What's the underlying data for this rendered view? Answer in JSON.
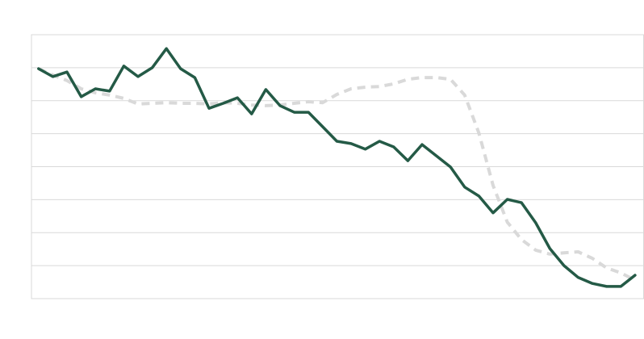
{
  "chart_data": {
    "type": "line",
    "x": [
      0,
      1,
      2,
      3,
      4,
      5,
      6,
      7,
      8,
      9,
      10,
      11,
      12,
      13,
      14,
      15,
      16,
      17,
      18,
      19,
      20,
      21,
      22,
      23,
      24,
      25,
      26,
      27,
      28,
      29,
      30,
      31,
      32,
      33,
      34,
      35,
      36,
      37,
      38,
      39,
      40,
      41,
      42
    ],
    "xlim": [
      -0.5,
      42.6
    ],
    "ylim": [
      0,
      8
    ],
    "yticks": [
      0,
      1,
      2,
      3,
      4,
      5,
      6,
      7,
      8
    ],
    "grid": true,
    "series": [
      {
        "color": "#d9d9d9",
        "dashed": true,
        "values": [
          6.97,
          6.78,
          6.61,
          6.36,
          6.24,
          6.17,
          6.07,
          5.9,
          5.92,
          5.94,
          5.92,
          5.92,
          5.9,
          5.94,
          5.92,
          5.87,
          5.85,
          5.87,
          5.92,
          5.97,
          5.94,
          6.19,
          6.36,
          6.41,
          6.43,
          6.51,
          6.65,
          6.7,
          6.7,
          6.65,
          6.17,
          5.02,
          3.43,
          2.32,
          1.79,
          1.47,
          1.35,
          1.39,
          1.42,
          1.22,
          0.93,
          0.78,
          0.56
        ]
      },
      {
        "color": "#245a46",
        "dashed": false,
        "values": [
          6.97,
          6.73,
          6.87,
          6.12,
          6.36,
          6.29,
          7.05,
          6.73,
          7.0,
          7.58,
          6.97,
          6.7,
          5.77,
          5.92,
          6.09,
          5.6,
          6.34,
          5.85,
          5.65,
          5.65,
          5.21,
          4.77,
          4.7,
          4.53,
          4.77,
          4.6,
          4.18,
          4.67,
          4.33,
          3.99,
          3.38,
          3.11,
          2.6,
          3.01,
          2.91,
          2.3,
          1.52,
          1.0,
          0.64,
          0.46,
          0.37,
          0.37,
          0.71
        ]
      }
    ]
  }
}
